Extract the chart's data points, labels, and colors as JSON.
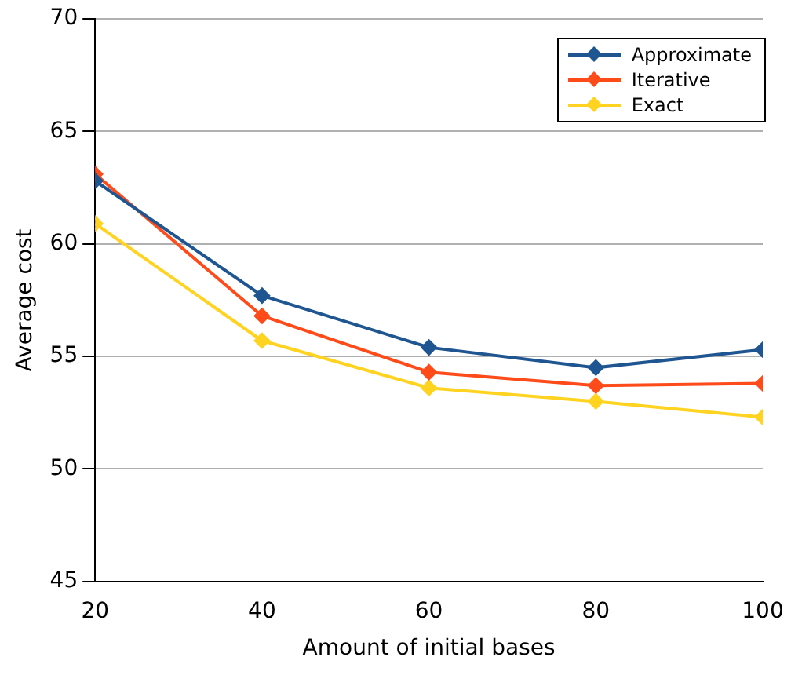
{
  "chart_data": {
    "type": "line",
    "xlabel": "Amount of initial bases",
    "ylabel": "Average cost",
    "x": [
      20,
      40,
      60,
      80,
      100
    ],
    "series": [
      {
        "name": "Approximate",
        "color": "#1f5591",
        "values": [
          62.8,
          57.7,
          55.4,
          54.5,
          55.3
        ]
      },
      {
        "name": "Iterative",
        "color": "#ff4b1a",
        "values": [
          63.1,
          56.8,
          54.3,
          53.7,
          53.8
        ]
      },
      {
        "name": "Exact",
        "color": "#ffd320",
        "values": [
          60.9,
          55.7,
          53.6,
          53.0,
          52.3
        ]
      }
    ],
    "xlim": [
      20,
      100
    ],
    "xticks": [
      20,
      40,
      60,
      80,
      100
    ],
    "ylim": [
      45,
      70
    ],
    "yticks": [
      45,
      50,
      55,
      60,
      65,
      70
    ],
    "grid": "y",
    "legend": "top right",
    "marker": "diamond",
    "line_style": "solid"
  }
}
